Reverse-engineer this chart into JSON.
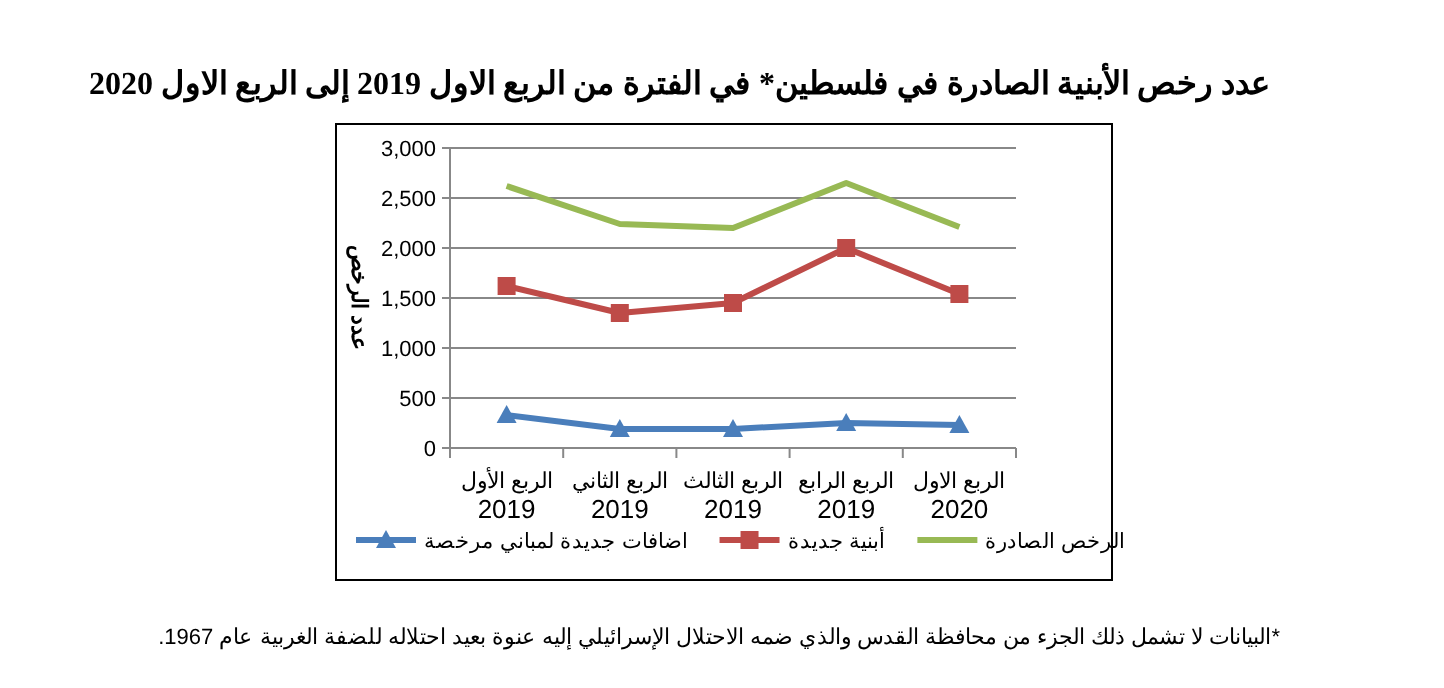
{
  "chart_data": {
    "type": "line",
    "title": "عدد رخص الأبنية الصادرة في فلسطين* في الفترة من الربع الاول 2019 إلى الربع الاول 2020",
    "ylabel": "عدد الرخص",
    "categories": [
      "الربع الأول 2019",
      "الربع الثاني 2019",
      "الربع الثالث 2019",
      "الربع الرابع 2019",
      "الربع الاول 2020"
    ],
    "series": [
      {
        "name": "اضافات جديدة لمباني مرخصة",
        "color": "#4a7ebb",
        "marker": "triangle",
        "values": [
          330,
          190,
          190,
          250,
          230
        ]
      },
      {
        "name": "أبنية جديدة",
        "color": "#be4b48",
        "marker": "square",
        "values": [
          1620,
          1350,
          1450,
          2000,
          1540
        ]
      },
      {
        "name": "الرخص الصادرة",
        "color": "#98b954",
        "marker": "none",
        "values": [
          2620,
          2240,
          2200,
          2650,
          2210
        ]
      }
    ],
    "ylim": [
      0,
      3000
    ],
    "yticks": [
      {
        "value": 0,
        "label": "0"
      },
      {
        "value": 500,
        "label": "500"
      },
      {
        "value": 1000,
        "label": "1,000"
      },
      {
        "value": 1500,
        "label": "1,500"
      },
      {
        "value": 2000,
        "label": "2,000"
      },
      {
        "value": 2500,
        "label": "2,500"
      },
      {
        "value": 3000,
        "label": "3,000"
      }
    ],
    "grid": "y",
    "legend": "bottom",
    "annotations": [
      "*البيانات لا تشمل ذلك الجزء من محافظة القدس والذي ضمه الاحتلال الإسرائيلي إليه عنوة بعيد احتلاله للضفة الغربية عام 1967."
    ]
  }
}
